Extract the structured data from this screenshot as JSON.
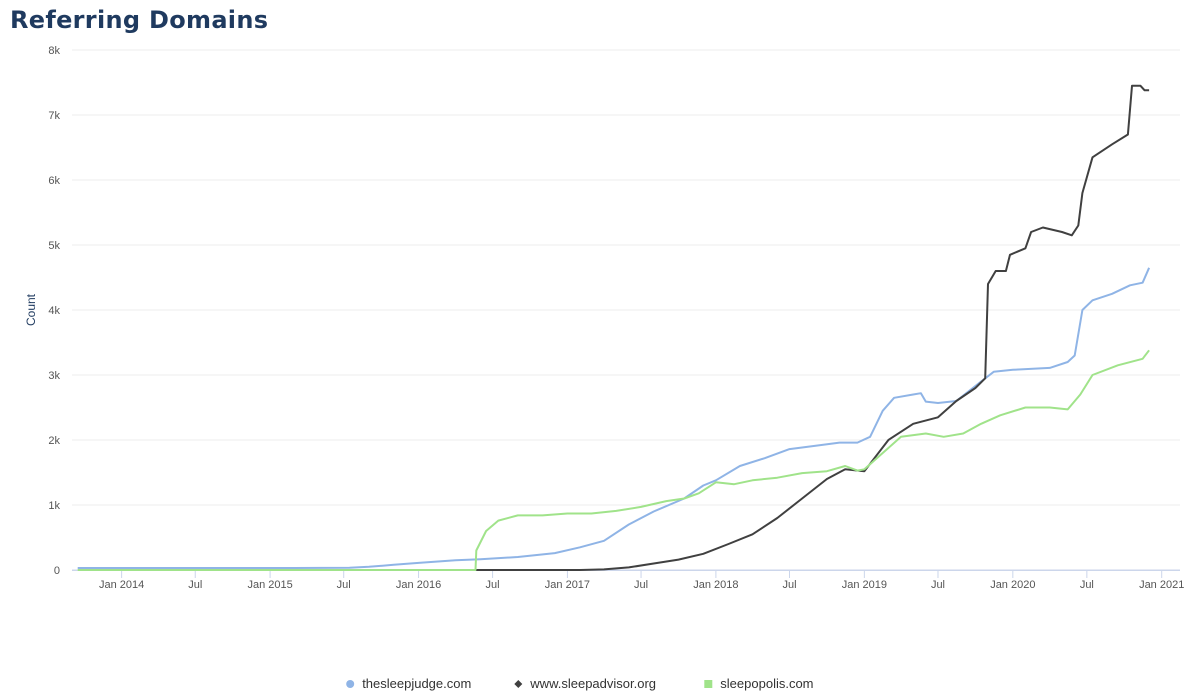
{
  "chart_data": {
    "type": "line",
    "title": "Referring Domains",
    "xlabel": "",
    "ylabel": "Count",
    "ylim": [
      0,
      8000
    ],
    "xlim": [
      "2013-09-01",
      "2021-02-15"
    ],
    "yticks": [
      {
        "value": 0,
        "label": "0"
      },
      {
        "value": 1000,
        "label": "1k"
      },
      {
        "value": 2000,
        "label": "2k"
      },
      {
        "value": 3000,
        "label": "3k"
      },
      {
        "value": 4000,
        "label": "4k"
      },
      {
        "value": 5000,
        "label": "5k"
      },
      {
        "value": 6000,
        "label": "6k"
      },
      {
        "value": 7000,
        "label": "7k"
      },
      {
        "value": 8000,
        "label": "8k"
      }
    ],
    "xticks": [
      {
        "date": "2014-01-01",
        "label": "Jan 2014"
      },
      {
        "date": "2014-07-01",
        "label": "Jul"
      },
      {
        "date": "2015-01-01",
        "label": "Jan 2015"
      },
      {
        "date": "2015-07-01",
        "label": "Jul"
      },
      {
        "date": "2016-01-01",
        "label": "Jan 2016"
      },
      {
        "date": "2016-07-01",
        "label": "Jul"
      },
      {
        "date": "2017-01-01",
        "label": "Jan 2017"
      },
      {
        "date": "2017-07-01",
        "label": "Jul"
      },
      {
        "date": "2018-01-01",
        "label": "Jan 2018"
      },
      {
        "date": "2018-07-01",
        "label": "Jul"
      },
      {
        "date": "2019-01-01",
        "label": "Jan 2019"
      },
      {
        "date": "2019-07-01",
        "label": "Jul"
      },
      {
        "date": "2020-01-01",
        "label": "Jan 2020"
      },
      {
        "date": "2020-07-01",
        "label": "Jul"
      },
      {
        "date": "2021-01-01",
        "label": "Jan 2021"
      }
    ],
    "grid": true,
    "legend_position": "bottom-center",
    "series": [
      {
        "name": "thesleepjudge.com",
        "color": "#8fb4e6",
        "marker": "circle",
        "points": [
          [
            "2013-09-15",
            30
          ],
          [
            "2014-06-01",
            30
          ],
          [
            "2015-03-01",
            30
          ],
          [
            "2015-07-15",
            35
          ],
          [
            "2015-09-01",
            50
          ],
          [
            "2015-11-01",
            80
          ],
          [
            "2016-01-01",
            110
          ],
          [
            "2016-04-01",
            150
          ],
          [
            "2016-06-01",
            165
          ],
          [
            "2016-09-01",
            200
          ],
          [
            "2016-12-01",
            260
          ],
          [
            "2017-02-01",
            350
          ],
          [
            "2017-04-01",
            450
          ],
          [
            "2017-06-01",
            700
          ],
          [
            "2017-08-01",
            900
          ],
          [
            "2017-10-15",
            1100
          ],
          [
            "2017-12-01",
            1300
          ],
          [
            "2018-01-01",
            1380
          ],
          [
            "2018-03-01",
            1600
          ],
          [
            "2018-05-01",
            1720
          ],
          [
            "2018-07-01",
            1860
          ],
          [
            "2018-09-01",
            1910
          ],
          [
            "2018-11-01",
            1960
          ],
          [
            "2018-12-15",
            1960
          ],
          [
            "2019-01-15",
            2050
          ],
          [
            "2019-02-15",
            2450
          ],
          [
            "2019-03-15",
            2650
          ],
          [
            "2019-05-01",
            2700
          ],
          [
            "2019-05-20",
            2720
          ],
          [
            "2019-06-01",
            2590
          ],
          [
            "2019-07-01",
            2570
          ],
          [
            "2019-08-15",
            2600
          ],
          [
            "2019-10-15",
            2900
          ],
          [
            "2019-11-15",
            3050
          ],
          [
            "2020-01-01",
            3080
          ],
          [
            "2020-04-01",
            3110
          ],
          [
            "2020-05-15",
            3200
          ],
          [
            "2020-06-01",
            3300
          ],
          [
            "2020-06-20",
            4000
          ],
          [
            "2020-07-15",
            4150
          ],
          [
            "2020-09-01",
            4250
          ],
          [
            "2020-10-15",
            4380
          ],
          [
            "2020-11-15",
            4420
          ],
          [
            "2020-12-01",
            4650
          ]
        ]
      },
      {
        "name": "www.sleepadvisor.org",
        "color": "#404040",
        "marker": "diamond",
        "points": [
          [
            "2016-05-20",
            0
          ],
          [
            "2017-02-01",
            0
          ],
          [
            "2017-04-01",
            10
          ],
          [
            "2017-06-01",
            40
          ],
          [
            "2017-08-01",
            100
          ],
          [
            "2017-10-01",
            160
          ],
          [
            "2017-12-01",
            250
          ],
          [
            "2018-02-01",
            400
          ],
          [
            "2018-04-01",
            550
          ],
          [
            "2018-06-01",
            800
          ],
          [
            "2018-08-01",
            1100
          ],
          [
            "2018-10-01",
            1400
          ],
          [
            "2018-11-15",
            1550
          ],
          [
            "2019-01-01",
            1520
          ],
          [
            "2019-03-01",
            2000
          ],
          [
            "2019-05-01",
            2250
          ],
          [
            "2019-07-01",
            2350
          ],
          [
            "2019-08-15",
            2600
          ],
          [
            "2019-10-01",
            2800
          ],
          [
            "2019-10-25",
            2950
          ],
          [
            "2019-11-01",
            4400
          ],
          [
            "2019-11-20",
            4600
          ],
          [
            "2019-12-15",
            4600
          ],
          [
            "2019-12-25",
            4850
          ],
          [
            "2020-02-01",
            4950
          ],
          [
            "2020-02-15",
            5200
          ],
          [
            "2020-03-15",
            5270
          ],
          [
            "2020-05-01",
            5200
          ],
          [
            "2020-05-25",
            5150
          ],
          [
            "2020-06-10",
            5300
          ],
          [
            "2020-06-20",
            5800
          ],
          [
            "2020-07-15",
            6350
          ],
          [
            "2020-09-01",
            6550
          ],
          [
            "2020-10-10",
            6700
          ],
          [
            "2020-10-20",
            7450
          ],
          [
            "2020-11-10",
            7450
          ],
          [
            "2020-11-20",
            7380
          ],
          [
            "2020-12-01",
            7380
          ]
        ]
      },
      {
        "name": "sleepopolis.com",
        "color": "#a0e38a",
        "marker": "square",
        "points": [
          [
            "2013-09-15",
            0
          ],
          [
            "2016-05-20",
            0
          ],
          [
            "2016-05-22",
            300
          ],
          [
            "2016-06-15",
            600
          ],
          [
            "2016-07-15",
            760
          ],
          [
            "2016-09-01",
            840
          ],
          [
            "2016-11-01",
            840
          ],
          [
            "2017-01-01",
            870
          ],
          [
            "2017-03-01",
            870
          ],
          [
            "2017-05-01",
            910
          ],
          [
            "2017-07-01",
            970
          ],
          [
            "2017-09-01",
            1060
          ],
          [
            "2017-10-15",
            1100
          ],
          [
            "2017-11-20",
            1180
          ],
          [
            "2018-01-01",
            1350
          ],
          [
            "2018-02-15",
            1320
          ],
          [
            "2018-04-01",
            1380
          ],
          [
            "2018-06-01",
            1420
          ],
          [
            "2018-08-01",
            1490
          ],
          [
            "2018-10-01",
            1520
          ],
          [
            "2018-11-15",
            1600
          ],
          [
            "2018-12-15",
            1530
          ],
          [
            "2019-01-01",
            1550
          ],
          [
            "2019-02-15",
            1800
          ],
          [
            "2019-04-01",
            2050
          ],
          [
            "2019-06-01",
            2100
          ],
          [
            "2019-07-15",
            2050
          ],
          [
            "2019-09-01",
            2100
          ],
          [
            "2019-10-15",
            2250
          ],
          [
            "2019-12-01",
            2380
          ],
          [
            "2020-02-01",
            2500
          ],
          [
            "2020-04-01",
            2500
          ],
          [
            "2020-05-15",
            2470
          ],
          [
            "2020-06-15",
            2700
          ],
          [
            "2020-07-15",
            3000
          ],
          [
            "2020-09-15",
            3150
          ],
          [
            "2020-11-15",
            3250
          ],
          [
            "2020-12-01",
            3380
          ]
        ]
      }
    ]
  }
}
